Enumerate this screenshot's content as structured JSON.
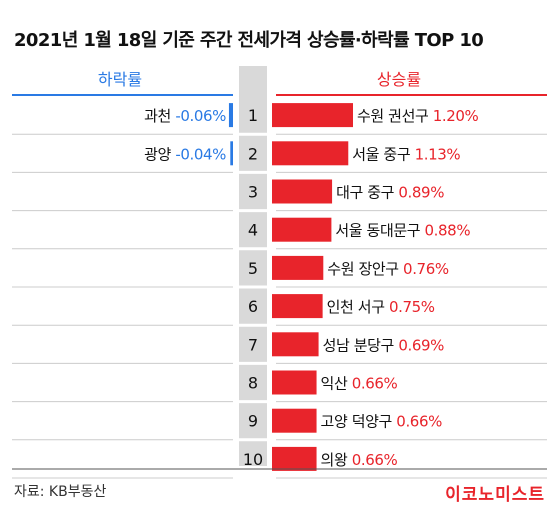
{
  "title": "2021년 1월 18일 기준 주간 전세가격 상승률·하락률 TOP 10",
  "headers": {
    "left": "하락률",
    "right": "상승률"
  },
  "source": "자료: KB부동산",
  "logo": "이코노미스트",
  "colors": {
    "rise": "#e8242b",
    "fall": "#2a7ae4",
    "rank_bg": "#d9d9d9",
    "divider": "#cccccc"
  },
  "chart_data": {
    "type": "bar",
    "title": "2021년 1월 18일 기준 주간 전세가격 상승률·하락률 TOP 10",
    "ranks": [
      "1",
      "2",
      "3",
      "4",
      "5",
      "6",
      "7",
      "8",
      "9",
      "10"
    ],
    "rise": {
      "name": "상승률",
      "categories": [
        "수원 권선구",
        "서울 중구",
        "대구 중구",
        "서울 동대문구",
        "수원 장안구",
        "인천 서구",
        "성남 분당구",
        "익산",
        "고양 덕양구",
        "의왕"
      ],
      "values": [
        1.2,
        1.13,
        0.89,
        0.88,
        0.76,
        0.75,
        0.69,
        0.66,
        0.66,
        0.66
      ],
      "labels": [
        "1.20%",
        "1.13%",
        "0.89%",
        "0.88%",
        "0.76%",
        "0.75%",
        "0.69%",
        "0.66%",
        "0.66%",
        "0.66%"
      ]
    },
    "fall": {
      "name": "하락률",
      "categories": [
        "과천",
        "광양"
      ],
      "values": [
        -0.06,
        -0.04
      ],
      "labels": [
        "-0.06%",
        "-0.04%"
      ]
    }
  }
}
